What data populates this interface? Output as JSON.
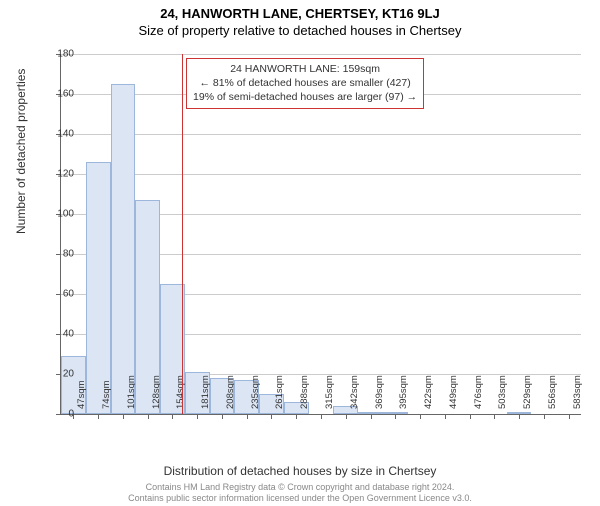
{
  "title_line1": "24, HANWORTH LANE, CHERTSEY, KT16 9LJ",
  "title_line2": "Size of property relative to detached houses in Chertsey",
  "yaxis_label": "Number of detached properties",
  "xaxis_label": "Distribution of detached houses by size in Chertsey",
  "footer_line1": "Contains HM Land Registry data © Crown copyright and database right 2024.",
  "footer_line2": "Contains public sector information licensed under the Open Government Licence v3.0.",
  "info_box": {
    "line1": "24 HANWORTH LANE: 159sqm",
    "line2": "← 81% of detached houses are smaller (427)",
    "line3": "19% of semi-detached houses are larger (97) →"
  },
  "chart": {
    "type": "histogram",
    "ylim": [
      0,
      180
    ],
    "ytick_step": 20,
    "xtick_labels": [
      "47sqm",
      "74sqm",
      "101sqm",
      "128sqm",
      "154sqm",
      "181sqm",
      "208sqm",
      "235sqm",
      "261sqm",
      "288sqm",
      "315sqm",
      "342sqm",
      "369sqm",
      "395sqm",
      "422sqm",
      "449sqm",
      "476sqm",
      "503sqm",
      "529sqm",
      "556sqm",
      "583sqm"
    ],
    "bar_values": [
      29,
      126,
      165,
      107,
      65,
      21,
      18,
      17,
      10,
      6,
      0,
      4,
      1,
      1,
      0,
      0,
      0,
      0,
      1,
      0,
      0
    ],
    "bar_fill": "#dbe5f4",
    "bar_border": "#9db6dc",
    "grid_color": "#cccccc",
    "ref_line_color": "#cc3333",
    "ref_line_value": 159,
    "x_range": [
      47,
      583
    ],
    "info_box_border": "#cc3333",
    "background": "#ffffff",
    "title_fontsize": 13,
    "axis_label_fontsize": 12,
    "tick_fontsize": 10
  }
}
